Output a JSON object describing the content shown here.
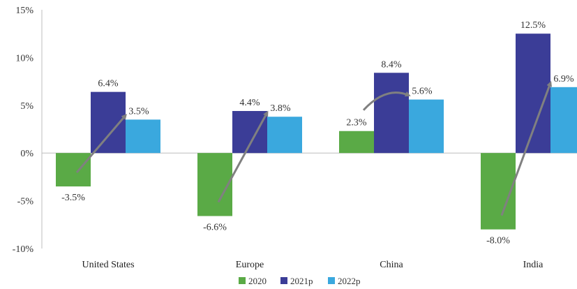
{
  "chart_data": {
    "type": "bar",
    "categories": [
      "United States",
      "Europe",
      "China",
      "India"
    ],
    "series": [
      {
        "name": "2020",
        "values": [
          -3.5,
          -6.6,
          2.3,
          -8.0
        ],
        "labels": [
          "-3.5%",
          "-6.6%",
          "2.3%",
          "-8.0%"
        ],
        "color": "#5aaa46"
      },
      {
        "name": "2021p",
        "values": [
          6.4,
          4.4,
          8.4,
          12.5
        ],
        "labels": [
          "6.4%",
          "4.4%",
          "8.4%",
          "12.5%"
        ],
        "color": "#3b3d97"
      },
      {
        "name": "2022p",
        "values": [
          3.5,
          3.8,
          5.6,
          6.9
        ],
        "labels": [
          "3.5%",
          "3.8%",
          "5.6%",
          "6.9%"
        ],
        "color": "#3aa8de"
      }
    ],
    "yticks": [
      "15%",
      "10%",
      "5%",
      "0%",
      "-5%",
      "-10%"
    ],
    "ytick_values": [
      15,
      10,
      5,
      0,
      -5,
      -10
    ],
    "ylim": [
      -10,
      15
    ],
    "legend": "bottom-center",
    "grid": false,
    "arrows": true,
    "arrow_color": "#808080"
  }
}
